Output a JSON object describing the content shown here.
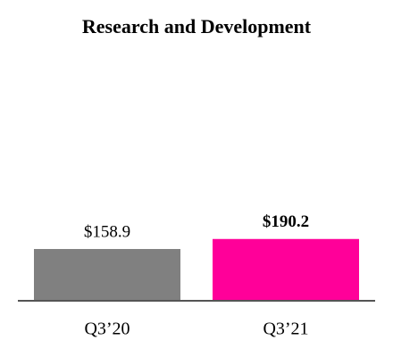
{
  "chart_data": {
    "type": "bar",
    "title": "Research and Development",
    "categories": [
      "Q3’20",
      "Q3’21"
    ],
    "values": [
      158.9,
      190.2
    ],
    "value_labels": [
      "$158.9",
      "$190.2"
    ],
    "colors": [
      "#808080",
      "#ff0099"
    ],
    "ylim": [
      0,
      800
    ]
  }
}
